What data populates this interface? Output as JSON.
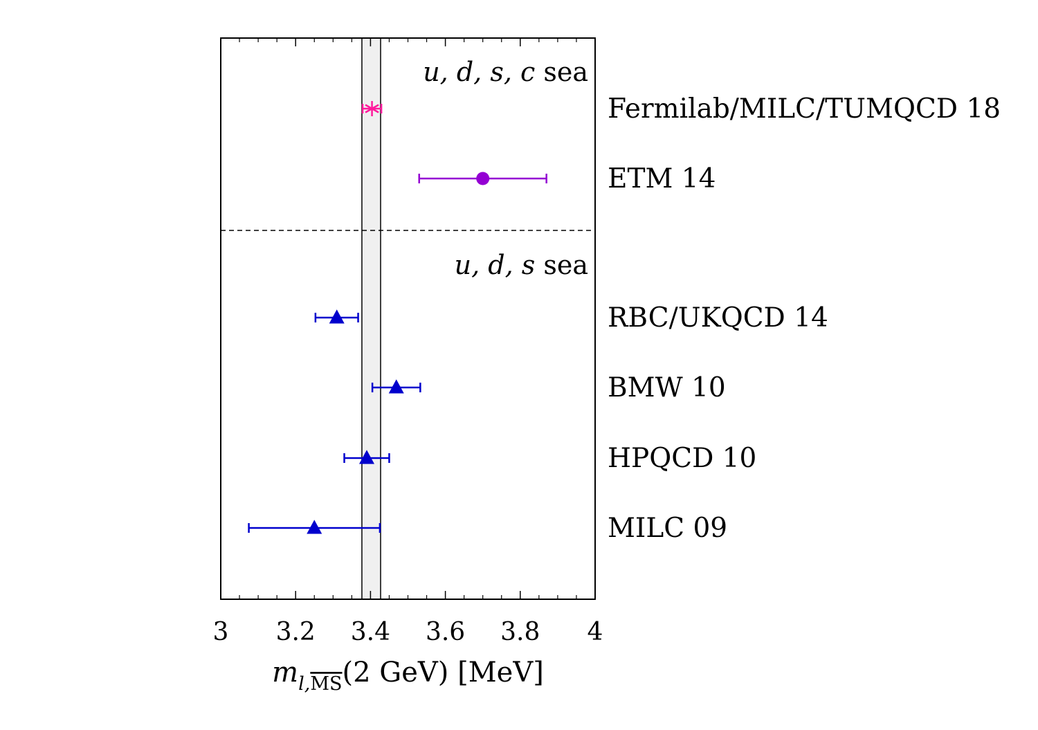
{
  "chart_data": {
    "type": "scatter",
    "subtype": "forest-plot-with-horizontal-error-bars",
    "title": "",
    "xlabel": {
      "main": "m",
      "subscript": "l,MS",
      "subscript_overline": "MS",
      "rest": "(2 GeV) [MeV]"
    },
    "ylabel": "",
    "xlim": [
      3,
      4
    ],
    "xticks": [
      {
        "value": 3,
        "label": "3"
      },
      {
        "value": 3.2,
        "label": "3.2"
      },
      {
        "value": 3.4,
        "label": "3.4"
      },
      {
        "value": 3.6,
        "label": "3.6"
      },
      {
        "value": 3.8,
        "label": "3.8"
      },
      {
        "value": 4,
        "label": "4"
      }
    ],
    "minor_tick_step": 0.05,
    "grid": false,
    "legend": "none",
    "average_band": {
      "low": 3.377,
      "high": 3.427,
      "fill": "#f0f0f0",
      "edge": "#000000"
    },
    "groups": [
      {
        "label_parts": [
          "u, d, s, c",
          " sea"
        ],
        "row_start": 0,
        "row_end": 1
      },
      {
        "label_parts": [
          "u, d, s",
          " sea"
        ],
        "row_start": 2,
        "row_end": 5
      }
    ],
    "series": [
      {
        "label": "Fermilab/MILC/TUMQCD 18",
        "x": 3.404,
        "xerr_low": 3.379,
        "xerr_high": 3.429,
        "marker": "asterisk",
        "color": "#ff1a9c"
      },
      {
        "label": "ETM 14",
        "x": 3.7,
        "xerr_low": 3.53,
        "xerr_high": 3.87,
        "marker": "circle",
        "color": "#9400d3"
      },
      {
        "label": "RBC/UKQCD 14",
        "x": 3.31,
        "xerr_low": 3.253,
        "xerr_high": 3.367,
        "marker": "triangle",
        "color": "#0000cd"
      },
      {
        "label": "BMW 10",
        "x": 3.469,
        "xerr_low": 3.405,
        "xerr_high": 3.533,
        "marker": "triangle",
        "color": "#0000cd"
      },
      {
        "label": "HPQCD 10",
        "x": 3.39,
        "xerr_low": 3.33,
        "xerr_high": 3.45,
        "marker": "triangle",
        "color": "#0000cd"
      },
      {
        "label": "MILC 09",
        "x": 3.25,
        "xerr_low": 3.075,
        "xerr_high": 3.425,
        "marker": "triangle",
        "color": "#0000cd"
      }
    ]
  }
}
